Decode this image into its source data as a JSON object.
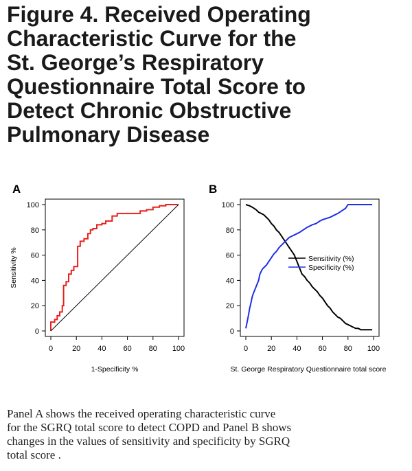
{
  "figure": {
    "title_lines": [
      "Figure 4. Received Operating",
      "Characteristic Curve for the",
      "St. George’s Respiratory",
      "Questionnaire  Total Score to",
      "Detect Chronic Obstructive",
      "Pulmonary Disease"
    ],
    "caption_lines": [
      "Panel A shows the received operating characteristic curve",
      "for the SGRQ total score to detect COPD and Panel B shows",
      "changes in the values of sensitivity and specificity by SGRQ",
      "total score ."
    ]
  },
  "chart_data": [
    {
      "panel": "A",
      "type": "line",
      "xlabel": "1-Specificity %",
      "ylabel": "Sensitivity %",
      "xlim": [
        0,
        100
      ],
      "ylim": [
        0,
        100
      ],
      "xticks": [
        0,
        20,
        40,
        60,
        80,
        100
      ],
      "yticks": [
        0,
        20,
        40,
        60,
        80,
        100
      ],
      "grid": false,
      "series": [
        {
          "color": "#e8201c",
          "x": [
            0,
            0,
            3,
            3,
            5,
            5,
            7,
            7,
            9,
            9,
            10,
            10,
            12,
            12,
            14,
            14,
            16,
            16,
            18,
            18,
            21,
            21,
            23,
            23,
            26,
            26,
            29,
            29,
            31,
            31,
            33,
            33,
            36,
            36,
            40,
            40,
            43,
            43,
            48,
            48,
            52,
            52,
            60,
            60,
            70,
            70,
            75,
            75,
            80,
            80,
            85,
            85,
            90,
            90,
            95,
            95,
            100
          ],
          "y": [
            0,
            7,
            7,
            9,
            9,
            12,
            12,
            15,
            15,
            20,
            20,
            36,
            36,
            39,
            39,
            45,
            45,
            48,
            48,
            51,
            51,
            67,
            67,
            71,
            71,
            73,
            73,
            77,
            77,
            80,
            80,
            81,
            81,
            84,
            84,
            85,
            85,
            87,
            87,
            91,
            91,
            93,
            93,
            93,
            93,
            95,
            95,
            96,
            96,
            98,
            98,
            99,
            99,
            100,
            100,
            100,
            100
          ]
        },
        {
          "color": "#000000",
          "x": [
            0,
            100
          ],
          "y": [
            0,
            100
          ]
        }
      ]
    },
    {
      "panel": "B",
      "type": "line",
      "xlabel": "St. George Respiratory Questionnaire total score",
      "ylabel": "",
      "xlim": [
        0,
        100
      ],
      "ylim": [
        0,
        100
      ],
      "xticks": [
        0,
        20,
        40,
        60,
        80,
        100
      ],
      "yticks": [
        0,
        20,
        40,
        60,
        80,
        100
      ],
      "grid": false,
      "legend_position": "right",
      "series": [
        {
          "name": "Sensitivity (%)",
          "color": "#000000",
          "x": [
            0,
            3,
            5,
            8,
            10,
            12,
            14,
            16,
            18,
            20,
            22,
            24,
            26,
            28,
            30,
            32,
            34,
            36,
            38,
            40,
            42,
            44,
            46,
            48,
            50,
            52,
            54,
            56,
            58,
            60,
            62,
            64,
            66,
            68,
            70,
            72,
            74,
            76,
            78,
            80,
            82,
            84,
            86,
            88,
            90,
            95,
            99
          ],
          "y": [
            100,
            99,
            98,
            96,
            94,
            93,
            92,
            90,
            88,
            85,
            83,
            80,
            78,
            75,
            72,
            69,
            66,
            63,
            60,
            55,
            50,
            45,
            43,
            40,
            38,
            35,
            33,
            31,
            28,
            26,
            23,
            20,
            18,
            15,
            13,
            11,
            10,
            8,
            6,
            5,
            4,
            3,
            2,
            2,
            1,
            1,
            1
          ]
        },
        {
          "name": "Specificity (%)",
          "color": "#1f2fe6",
          "x": [
            0,
            1,
            2,
            3,
            4,
            5,
            6,
            8,
            10,
            11,
            12,
            13,
            14,
            16,
            18,
            20,
            22,
            24,
            26,
            28,
            30,
            32,
            34,
            36,
            38,
            40,
            42,
            45,
            48,
            50,
            52,
            55,
            58,
            60,
            63,
            66,
            70,
            72,
            75,
            78,
            80,
            85,
            90,
            95,
            99
          ],
          "y": [
            2,
            7,
            12,
            18,
            22,
            27,
            30,
            35,
            40,
            45,
            47,
            49,
            50,
            52,
            55,
            58,
            61,
            63,
            66,
            68,
            70,
            72,
            74,
            75,
            76,
            77,
            78,
            80,
            82,
            83,
            84,
            85,
            87,
            88,
            89,
            90,
            92,
            93,
            95,
            97,
            100,
            100,
            100,
            100,
            100
          ]
        }
      ]
    }
  ]
}
